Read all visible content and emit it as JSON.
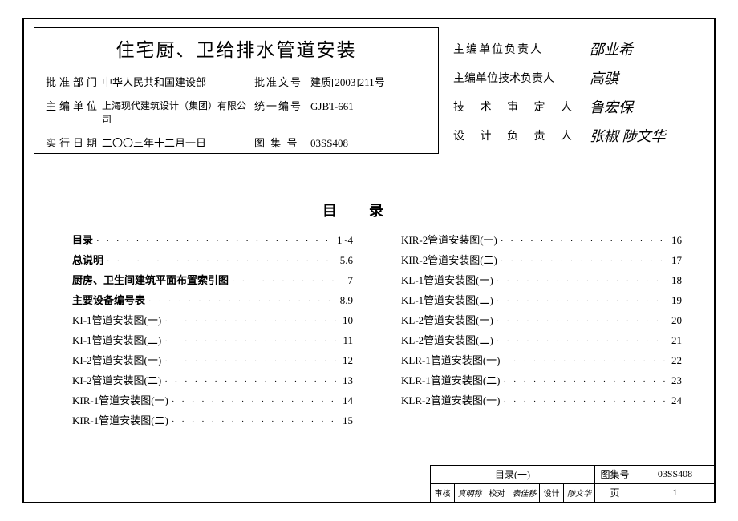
{
  "header": {
    "title": "住宅厨、卫给排水管道安装",
    "labels": {
      "approve_dept": "批准部门",
      "approve_doc": "批准文号",
      "main_org": "主编单位",
      "uni_code": "统一编号",
      "eff_date": "实行日期",
      "album_no": "图 集 号"
    },
    "values": {
      "approve_dept": "中华人民共和国建设部",
      "approve_doc": "建质[2003]211号",
      "main_org": "上海现代建筑设计（集团）有限公司",
      "uni_code": "GJBT-661",
      "eff_date": "二〇〇三年十二月一日",
      "album_no": "03SS408"
    }
  },
  "signatures": {
    "rows": [
      {
        "label": "主编单位负责人",
        "sig": "邵业希"
      },
      {
        "label": "主编单位技术负责人",
        "sig": "高骐"
      },
      {
        "label": "技 术 审 定 人",
        "sig": "鲁宏保"
      },
      {
        "label": "设 计 负 责 人",
        "sig": "张椒  陟文华"
      }
    ]
  },
  "toc": {
    "title": "目录",
    "left": [
      {
        "label": "目录",
        "page": "1~4",
        "bold": true
      },
      {
        "label": "总说明",
        "page": "5.6",
        "bold": true
      },
      {
        "label": "厨房、卫生间建筑平面布置索引图",
        "page": "7",
        "bold": true
      },
      {
        "label": "主要设备编号表",
        "page": "8.9",
        "bold": true
      },
      {
        "label": "KI-1管道安装图(一)",
        "page": "10"
      },
      {
        "label": "KI-1管道安装图(二)",
        "page": "11"
      },
      {
        "label": "KI-2管道安装图(一)",
        "page": "12"
      },
      {
        "label": "KI-2管道安装图(二)",
        "page": "13"
      },
      {
        "label": "KIR-1管道安装图(一)",
        "page": "14"
      },
      {
        "label": "KIR-1管道安装图(二)",
        "page": "15"
      }
    ],
    "right": [
      {
        "label": "KIR-2管道安装图(一)",
        "page": "16"
      },
      {
        "label": "KIR-2管道安装图(二)",
        "page": "17"
      },
      {
        "label": "KL-1管道安装图(一)",
        "page": "18"
      },
      {
        "label": "KL-1管道安装图(二)",
        "page": "19"
      },
      {
        "label": "KL-2管道安装图(一)",
        "page": "20"
      },
      {
        "label": "KL-2管道安装图(二)",
        "page": "21"
      },
      {
        "label": "KLR-1管道安装图(一)",
        "page": "22"
      },
      {
        "label": "KLR-1管道安装图(二)",
        "page": "23"
      },
      {
        "label": "KLR-2管道安装图(一)",
        "page": "24"
      }
    ]
  },
  "cartouche": {
    "sheet_title": "目录(一)",
    "album_label": "图集号",
    "album_no": "03SS408",
    "review_label": "审核",
    "review_sig": "真明称",
    "check_label": "校对",
    "check_sig": "表佳移",
    "design_label": "设计",
    "design_sig": "陟文华",
    "page_label": "页",
    "page_no": "1"
  }
}
